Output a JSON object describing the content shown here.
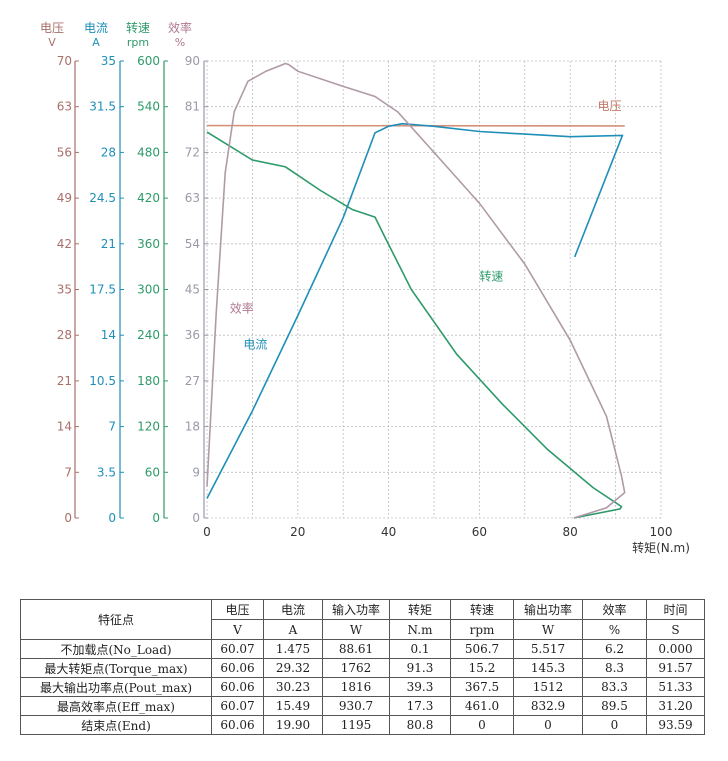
{
  "axes_headers": [
    {
      "name": "电压",
      "unit": "V",
      "color": "#a8706a"
    },
    {
      "name": "电流",
      "unit": "A",
      "color": "#1f8fb8"
    },
    {
      "name": "转速",
      "unit": "rpm",
      "color": "#2e9a6a"
    },
    {
      "name": "效率",
      "unit": "%",
      "color": "#b07890"
    }
  ],
  "chart_data": {
    "type": "line",
    "xlabel": "转矩(N.m)",
    "xlim": [
      0,
      100
    ],
    "x_ticks": [
      0,
      20,
      40,
      60,
      80,
      100
    ],
    "y_axes": [
      {
        "id": "voltage",
        "range": [
          0,
          70
        ],
        "ticks": [
          "0",
          "7",
          "14",
          "21",
          "28",
          "35",
          "42",
          "49",
          "56",
          "63",
          "70"
        ],
        "color": "#a8706a"
      },
      {
        "id": "current",
        "range": [
          0,
          35
        ],
        "ticks": [
          "0",
          "3.5",
          "7",
          "10.5",
          "14",
          "17.5",
          "21",
          "24.5",
          "28",
          "31.5",
          "35"
        ],
        "color": "#1f8fb8"
      },
      {
        "id": "speed",
        "range": [
          0,
          600
        ],
        "ticks": [
          "0",
          "60",
          "120",
          "180",
          "240",
          "300",
          "360",
          "420",
          "480",
          "540",
          "600"
        ],
        "color": "#2e9a6a"
      },
      {
        "id": "efficiency",
        "range": [
          0,
          90
        ],
        "ticks": [
          "0",
          "9",
          "18",
          "27",
          "36",
          "45",
          "54",
          "63",
          "72",
          "81",
          "90"
        ],
        "color": "#9a9aa8"
      }
    ],
    "grid": true,
    "series": [
      {
        "name": "电压",
        "axis": "voltage",
        "color": "#d4907a",
        "points": [
          [
            0,
            60.1
          ],
          [
            92,
            60.06
          ]
        ]
      },
      {
        "name": "电流",
        "axis": "current",
        "color": "#1f8fb8",
        "points": [
          [
            0,
            1.5
          ],
          [
            10,
            8.2
          ],
          [
            20,
            15.5
          ],
          [
            30,
            23
          ],
          [
            37,
            29.5
          ],
          [
            40,
            30
          ],
          [
            43,
            30.2
          ],
          [
            50,
            30
          ],
          [
            60,
            29.6
          ],
          [
            70,
            29.4
          ],
          [
            80,
            29.2
          ],
          [
            91.5,
            29.3
          ],
          [
            81,
            20
          ]
        ]
      },
      {
        "name": "转速",
        "axis": "speed",
        "color": "#2e9a6a",
        "points": [
          [
            0,
            506.7
          ],
          [
            10,
            470
          ],
          [
            17.3,
            461
          ],
          [
            25,
            430
          ],
          [
            32,
            405
          ],
          [
            37,
            395
          ],
          [
            39.3,
            367.5
          ],
          [
            45,
            300
          ],
          [
            55,
            215
          ],
          [
            65,
            150
          ],
          [
            75,
            90
          ],
          [
            85,
            40
          ],
          [
            91.3,
            15
          ],
          [
            91,
            12
          ],
          [
            80.8,
            0
          ]
        ]
      },
      {
        "name": "效率",
        "axis": "efficiency",
        "color": "#b09aa8",
        "points": [
          [
            0,
            6.2
          ],
          [
            2,
            40
          ],
          [
            4,
            68
          ],
          [
            6,
            80
          ],
          [
            9,
            86
          ],
          [
            13,
            88
          ],
          [
            17.3,
            89.5
          ],
          [
            18,
            89.3
          ],
          [
            20,
            88
          ],
          [
            30,
            85
          ],
          [
            37,
            83
          ],
          [
            42,
            80
          ],
          [
            50,
            72
          ],
          [
            60,
            62
          ],
          [
            70,
            50
          ],
          [
            80,
            35
          ],
          [
            88,
            20
          ],
          [
            91.3,
            8.3
          ],
          [
            92,
            5
          ],
          [
            88,
            2
          ],
          [
            80.8,
            0
          ]
        ]
      }
    ],
    "annotations": [
      {
        "text": "电压",
        "x": 86,
        "y_axis": "voltage",
        "y": 62.5
      },
      {
        "text": "效率",
        "x": 5,
        "y_axis": "efficiency",
        "y": 40.5
      },
      {
        "text": "转速",
        "x": 60,
        "y_axis": "speed",
        "y": 312
      },
      {
        "text": "电流",
        "x": 8,
        "y_axis": "current",
        "y": 13
      }
    ]
  },
  "table": {
    "headers_top": [
      "特征点",
      "电压",
      "电流",
      "输入功率",
      "转矩",
      "转速",
      "输出功率",
      "效率",
      "时间"
    ],
    "headers_units": [
      "V",
      "A",
      "W",
      "N.m",
      "rpm",
      "W",
      "%",
      "S"
    ],
    "rows": [
      [
        "不加载点(No_Load)",
        "60.07",
        "1.475",
        "88.61",
        "0.1",
        "506.7",
        "5.517",
        "6.2",
        "0.000"
      ],
      [
        "最大转矩点(Torque_max)",
        "60.06",
        "29.32",
        "1762",
        "91.3",
        "15.2",
        "145.3",
        "8.3",
        "91.57"
      ],
      [
        "最大输出功率点(Pout_max)",
        "60.06",
        "30.23",
        "1816",
        "39.3",
        "367.5",
        "1512",
        "83.3",
        "51.33"
      ],
      [
        "最高效率点(Eff_max)",
        "60.07",
        "15.49",
        "930.7",
        "17.3",
        "461.0",
        "832.9",
        "89.5",
        "31.20"
      ],
      [
        "结束点(End)",
        "60.06",
        "19.90",
        "1195",
        "80.8",
        "0",
        "0",
        "0",
        "93.59"
      ]
    ]
  }
}
